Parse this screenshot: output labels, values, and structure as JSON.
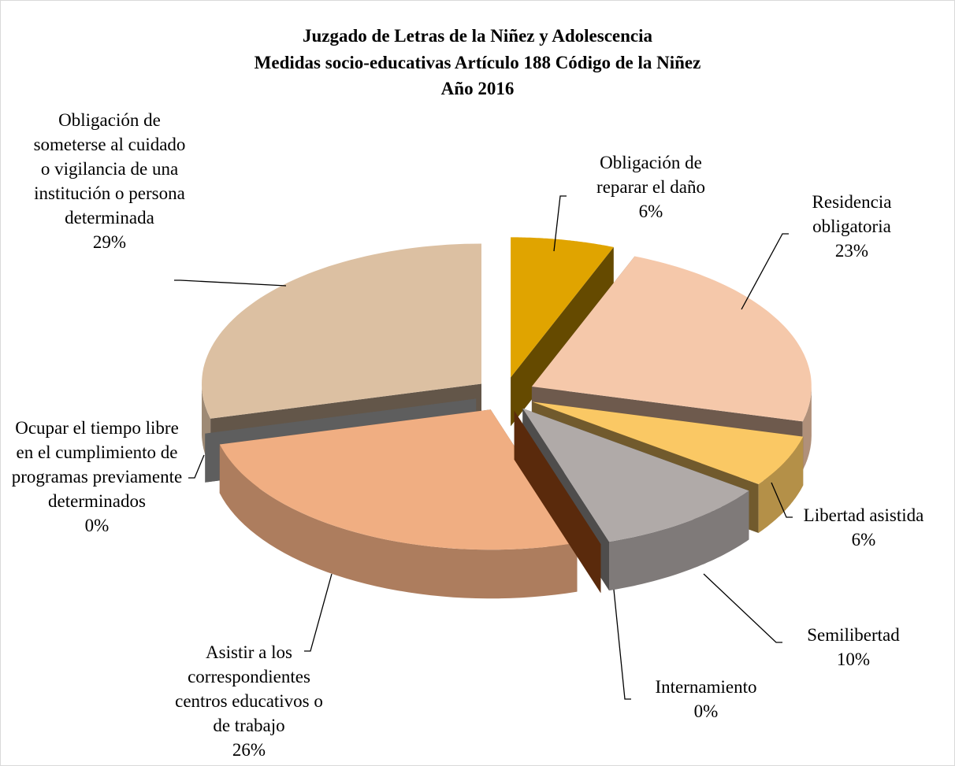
{
  "chart_data": {
    "type": "pie3d",
    "title": [
      "Juzgado de Letras de la Niñez y Adolescencia",
      "Medidas socio-educativas Artículo 188 Código de la Niñez",
      "Año 2016"
    ],
    "categories": [
      "Obligación de reparar el daño",
      "Residencia obligatoria",
      "Libertad asistida",
      "Semilibertad",
      "Internamiento",
      "Asistir a los correspondientes centros educativos o de trabajo",
      "Ocupar el tiempo libre en el cumplimiento de programas previamente determinados",
      "Obligación de someterse al cuidado o vigilancia de una institución o persona determinada"
    ],
    "values": [
      6,
      23,
      6,
      10,
      0,
      26,
      0,
      29
    ],
    "value_labels": [
      "6%",
      "23%",
      "6%",
      "10%",
      "0%",
      "26%",
      "0%",
      "29%"
    ],
    "colors": [
      "#e0a400",
      "#f5c8aa",
      "#fac864",
      "#b0aaa8",
      "#5a2a0c",
      "#f0ae82",
      "#5e5e5e",
      "#dcc0a2"
    ]
  }
}
